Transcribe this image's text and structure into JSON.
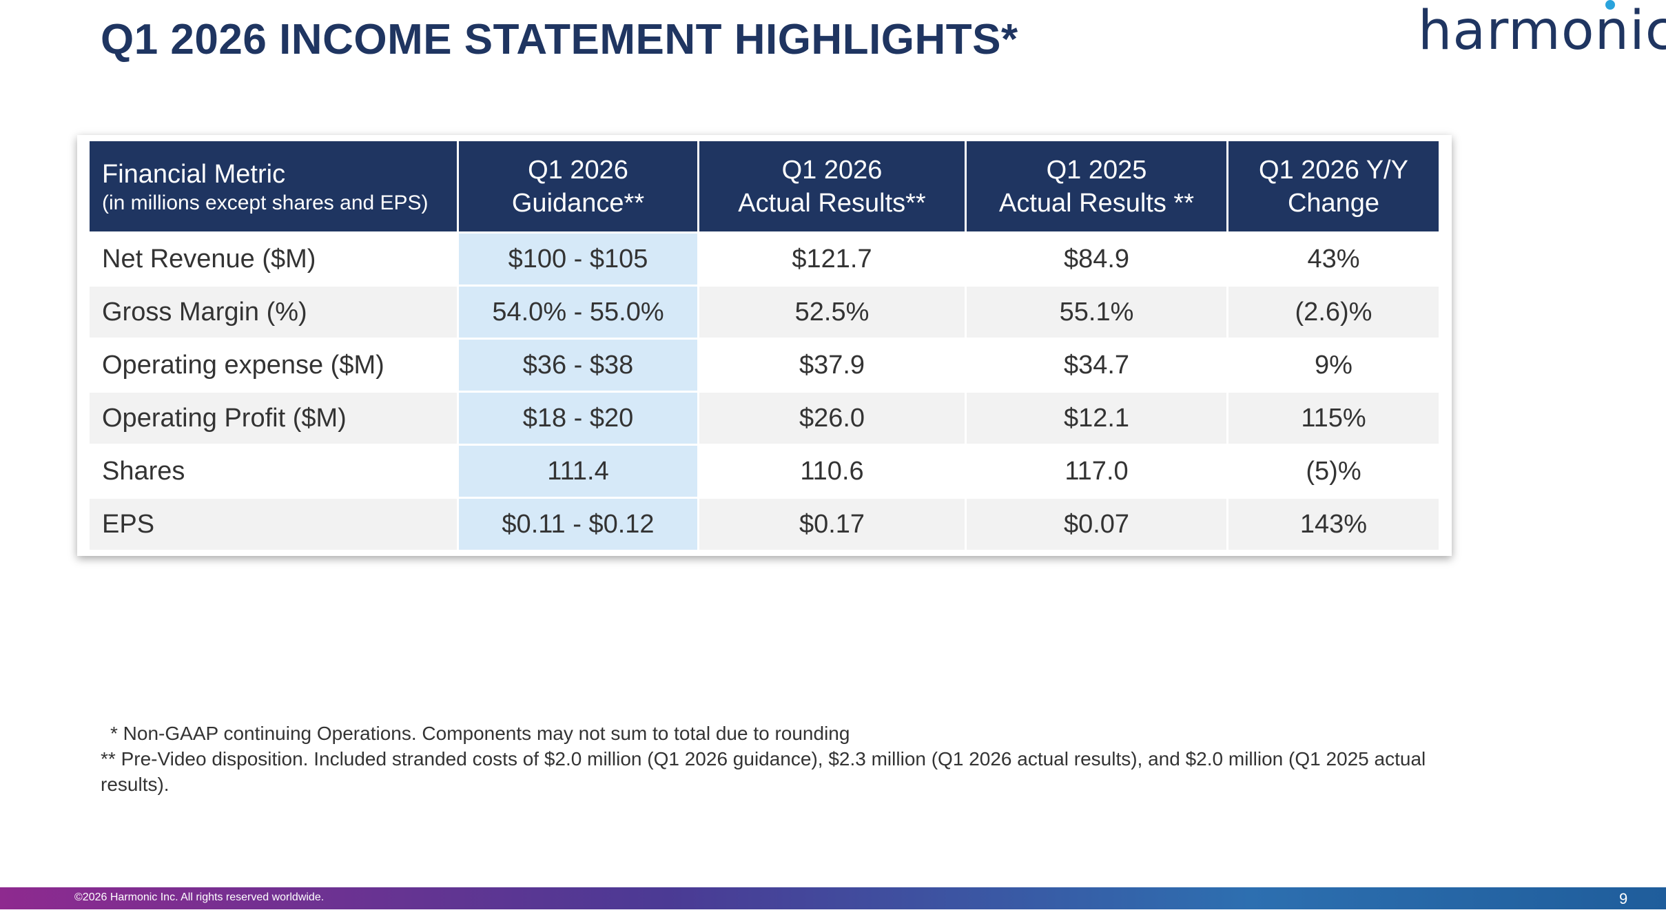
{
  "header": {
    "title": "Q1 2026 INCOME STATEMENT HIGHLIGHTS*",
    "logo": "harmonic"
  },
  "table": {
    "header": [
      [
        "Financial Metric",
        "(in millions except shares and EPS)"
      ],
      [
        "Q1 2026",
        "Guidance**"
      ],
      [
        "Q1 2026",
        "Actual Results**"
      ],
      [
        "Q1 2025",
        "Actual Results **"
      ],
      [
        "Q1 2026 Y/Y",
        "Change"
      ]
    ],
    "rows": [
      [
        "Net Revenue ($M)",
        "$100 - $105",
        "$121.7",
        "$84.9",
        "43%"
      ],
      [
        "Gross Margin (%)",
        "54.0% - 55.0%",
        "52.5%",
        "55.1%",
        "(2.6)%"
      ],
      [
        "Operating expense ($M)",
        "$36 - $38",
        "$37.9",
        "$34.7",
        "9%"
      ],
      [
        "Operating Profit ($M)",
        "$18 - $20",
        "$26.0",
        "$12.1",
        "115%"
      ],
      [
        "Shares",
        "111.4",
        "110.6",
        "117.0",
        "(5)%"
      ],
      [
        "EPS",
        "$0.11 - $0.12",
        "$0.17",
        "$0.07",
        "143%"
      ]
    ]
  },
  "footnotes": [
    "* Non-GAAP continuing Operations. Components may not sum to total due to rounding",
    "** Pre-Video disposition. Included stranded costs of $2.0 million (Q1 2026 guidance), $2.3 million (Q1 2026 actual results), and $2.0 million (Q1 2025 actual results)."
  ],
  "footer": {
    "copyright": "©2026 Harmonic Inc. All rights reserved worldwide.",
    "page": "9"
  }
}
